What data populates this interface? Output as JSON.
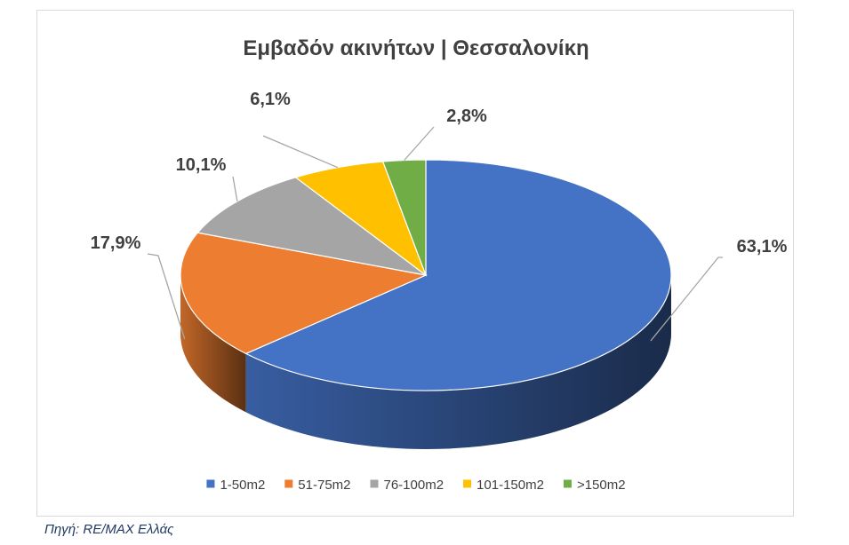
{
  "chart_data": {
    "type": "pie",
    "title": "Εμβαδόν ακινήτων | Θεσσαλονίκη",
    "categories": [
      "1-50m2",
      "51-75m2",
      "76-100m2",
      "101-150m2",
      ">150m2"
    ],
    "values": [
      63.1,
      17.9,
      10.1,
      6.1,
      2.8
    ],
    "data_labels": [
      "63,1%",
      "17,9%",
      "10,1%",
      "6,1%",
      "2,8%"
    ],
    "colors": [
      "#4472c4",
      "#ed7d31",
      "#a5a5a5",
      "#ffc000",
      "#70ad47"
    ],
    "legend": {
      "position": "bottom",
      "entries": [
        "1-50m2",
        "51-75m2",
        "76-100m2",
        "101-150m2",
        ">150m2"
      ]
    },
    "style": "3d-pie"
  },
  "source": "Πηγή: RE/MAX Ελλάς"
}
